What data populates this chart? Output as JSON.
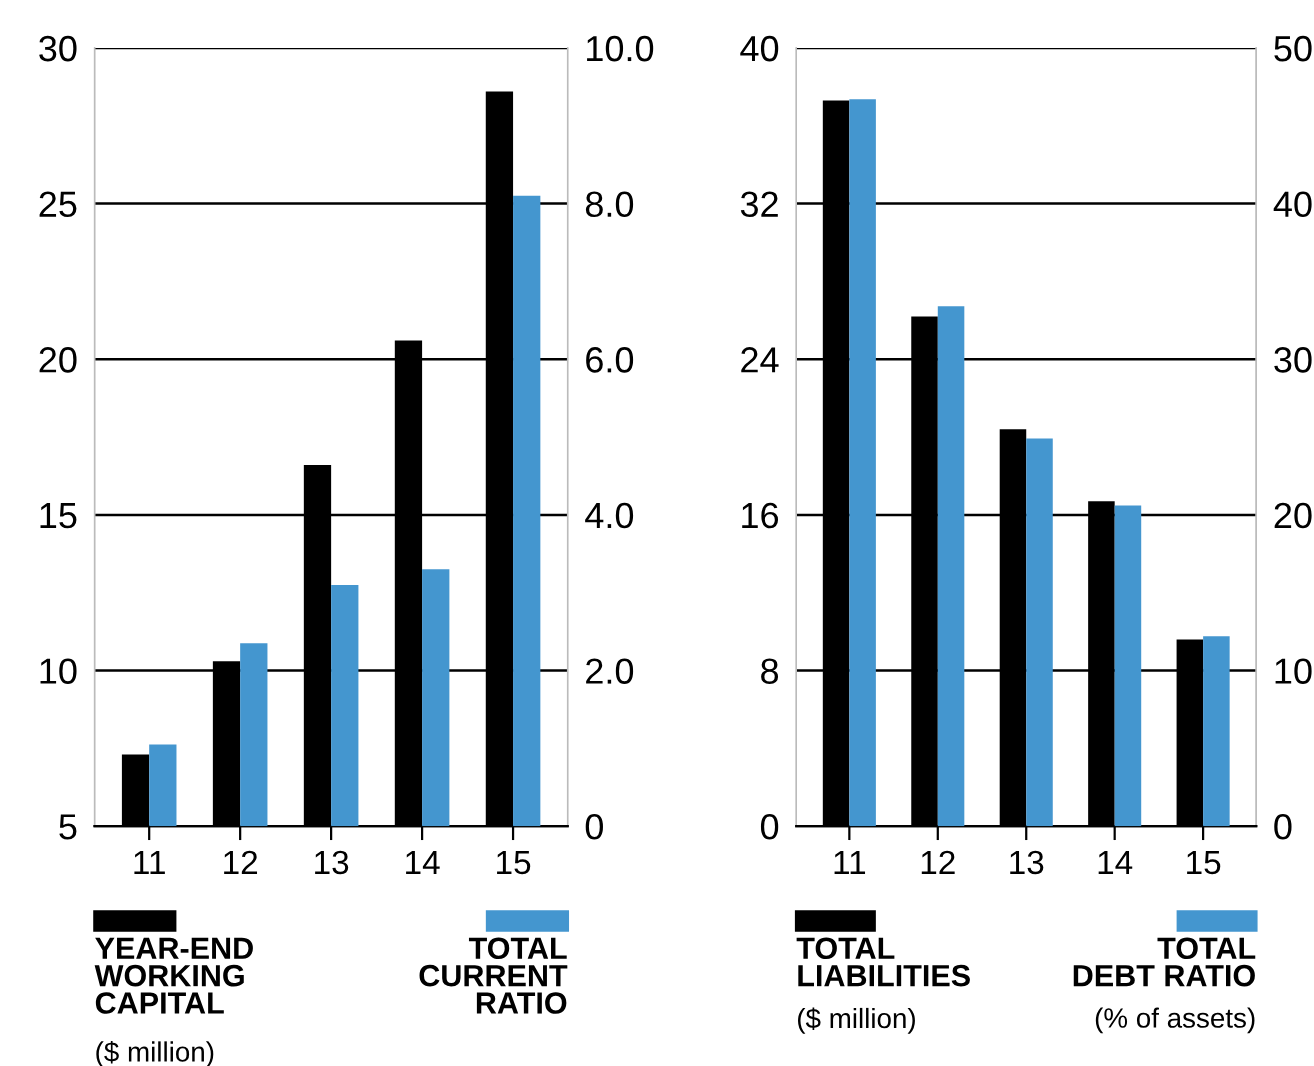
{
  "chart_data": [
    {
      "type": "bar",
      "categories": [
        "11",
        "12",
        "13",
        "14",
        "15"
      ],
      "annotations": [
        "($ million)"
      ],
      "legend": "bottom",
      "grid": "y",
      "ylim": [
        5,
        30
      ],
      "yticks": [
        5,
        10,
        15,
        20,
        25,
        30
      ],
      "y2lim": [
        0,
        10
      ],
      "y2ticks": [
        0,
        {
          "value": 2,
          "label": "2.0"
        },
        {
          "value": 4,
          "label": "4.0"
        },
        {
          "value": 6,
          "label": "6.0"
        },
        {
          "value": 8,
          "label": "8.0"
        },
        {
          "value": 10,
          "label": "10.0"
        }
      ],
      "series": [
        {
          "name": "YEAR-END\nWORKING\nCAPITAL",
          "color": "#000000",
          "values": [
            7.3,
            10.3,
            16.6,
            20.6,
            28.6
          ]
        },
        {
          "name": "TOTAL\nCURRENT\nRATIO",
          "color": "#4496cf",
          "axis": "y2",
          "values": [
            1.05,
            2.35,
            3.1,
            3.3,
            8.1
          ]
        }
      ]
    },
    {
      "type": "bar",
      "categories": [
        "11",
        "12",
        "13",
        "14",
        "15"
      ],
      "annotations": [
        "($ million)",
        "(% of assets)"
      ],
      "legend": "bottom",
      "grid": "y",
      "ylim": [
        0,
        40
      ],
      "yticks": [
        0,
        8,
        16,
        24,
        32,
        40
      ],
      "y2lim": [
        0,
        50
      ],
      "y2ticks": [
        0,
        10,
        20,
        30,
        40,
        50
      ],
      "series": [
        {
          "name": "TOTAL\nLIABILITIES",
          "color": "#000000",
          "values": [
            37.3,
            26.2,
            20.4,
            16.7,
            9.6
          ]
        },
        {
          "name": "TOTAL\nDEBT RATIO",
          "color": "#4496cf",
          "axis": "y2",
          "values": [
            46.7,
            33.4,
            24.9,
            20.6,
            12.2
          ]
        }
      ]
    }
  ]
}
